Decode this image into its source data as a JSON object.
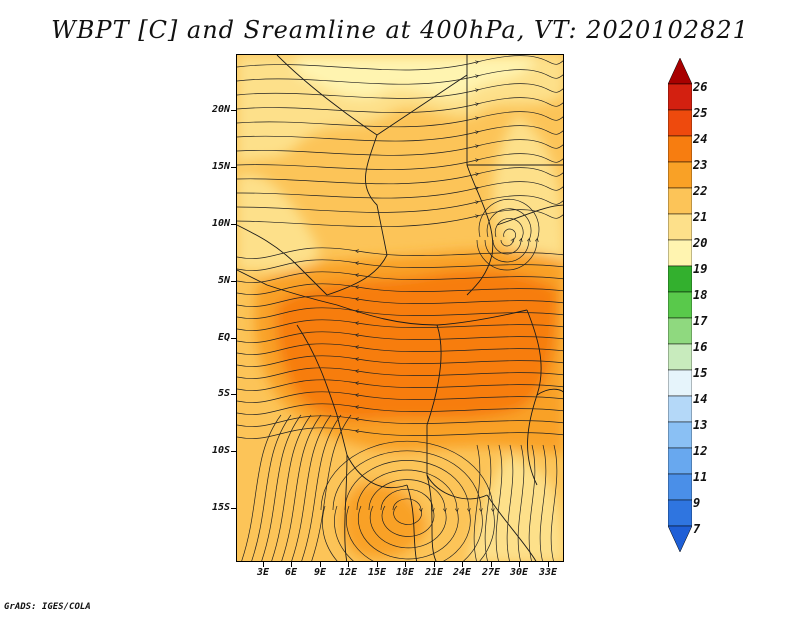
{
  "title": "WBPT [C] and Sreamline at 400hPa, VT: 2020102821",
  "footer": "GrADS: IGES/COLA",
  "map": {
    "variable": "WBPT [C]",
    "overlay": "streamlines",
    "level": "400hPa",
    "lon_range": [
      0,
      34.5
    ],
    "lat_range": [
      -20,
      25
    ],
    "lat_labels": [
      "20N",
      "15N",
      "10N",
      "5N",
      "EQ",
      "5S",
      "10S",
      "15S"
    ],
    "lon_labels": [
      "3E",
      "6E",
      "9E",
      "12E",
      "15E",
      "18E",
      "21E",
      "24E",
      "27E",
      "30E",
      "33E"
    ]
  },
  "colorbar": {
    "levels": [
      "7",
      "9",
      "11",
      "12",
      "13",
      "14",
      "15",
      "16",
      "17",
      "18",
      "19",
      "20",
      "21",
      "22",
      "23",
      "24",
      "25",
      "26"
    ],
    "colors": [
      "#1f5fd6",
      "#2f75e0",
      "#4a8fe8",
      "#68a8ef",
      "#8ac0f4",
      "#b4d8f8",
      "#e6f4fb",
      "#c8ebbd",
      "#8fd97f",
      "#59c94b",
      "#33b02e",
      "#fff4b0",
      "#fde08a",
      "#fcc458",
      "#f9a126",
      "#f77d10",
      "#ee4a0d",
      "#d32010",
      "#a80000"
    ]
  }
}
